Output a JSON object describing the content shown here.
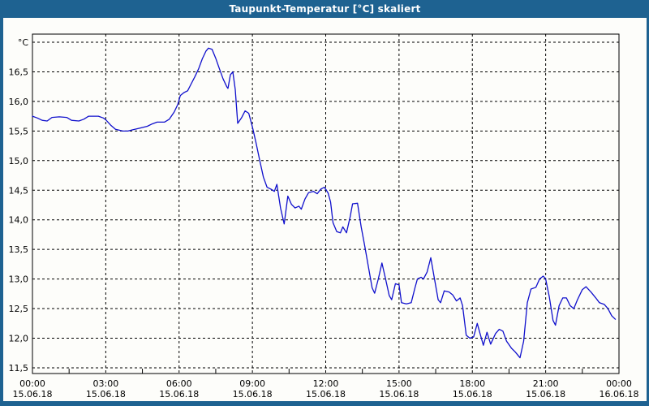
{
  "window": {
    "title": "Taupunkt-Temperatur [°C] skaliert"
  },
  "colors": {
    "titlebar_bg": "#1e6291",
    "titlebar_text": "#ffffff",
    "frame": "#1e6291",
    "background": "#fdfdfa",
    "line": "#0f0fcc",
    "grid": "#000000",
    "axis": "#000000",
    "text": "#000000"
  },
  "chart_data": {
    "type": "line",
    "title": "Taupunkt-Temperatur [°C] skaliert",
    "unit_label": "°C",
    "xlabel": "",
    "ylabel": "°C",
    "xlim_hours": [
      0,
      24
    ],
    "ylim": [
      11.45,
      17.15
    ],
    "grid": "dashed",
    "legend_position": "none",
    "y_ticks": [
      {
        "v": 17.0,
        "label": "°C"
      },
      {
        "v": 16.5,
        "label": "16,5"
      },
      {
        "v": 16.0,
        "label": "16,0"
      },
      {
        "v": 15.5,
        "label": "15,5"
      },
      {
        "v": 15.0,
        "label": "15,0"
      },
      {
        "v": 14.5,
        "label": "14,5"
      },
      {
        "v": 14.0,
        "label": "14,0"
      },
      {
        "v": 13.5,
        "label": "13,5"
      },
      {
        "v": 13.0,
        "label": "13,0"
      },
      {
        "v": 12.5,
        "label": "12,5"
      },
      {
        "v": 12.0,
        "label": "12,0"
      },
      {
        "v": 11.5,
        "label": "11,5"
      }
    ],
    "x_ticks": [
      {
        "t": 0,
        "time": "00:00",
        "date": "15.06.18"
      },
      {
        "t": 3,
        "time": "03:00",
        "date": "15.06.18"
      },
      {
        "t": 6,
        "time": "06:00",
        "date": "15.06.18"
      },
      {
        "t": 9,
        "time": "09:00",
        "date": "15.06.18"
      },
      {
        "t": 12,
        "time": "12:00",
        "date": "15.06.18"
      },
      {
        "t": 15,
        "time": "15:00",
        "date": "15.06.18"
      },
      {
        "t": 18,
        "time": "18:00",
        "date": "15.06.18"
      },
      {
        "t": 21,
        "time": "21:00",
        "date": "15.06.18"
      },
      {
        "t": 24,
        "time": "00:00",
        "date": "16.06.18"
      }
    ],
    "x_minor_tick_hours": [
      1.5,
      4.5,
      7.5,
      10.5,
      13.5,
      16.5,
      19.5,
      22.5
    ],
    "series": [
      {
        "name": "Taupunkt-Temperatur",
        "color": "#0f0fcc",
        "points": [
          [
            0.0,
            15.75
          ],
          [
            0.2,
            15.72
          ],
          [
            0.4,
            15.68
          ],
          [
            0.6,
            15.67
          ],
          [
            0.8,
            15.73
          ],
          [
            1.1,
            15.74
          ],
          [
            1.4,
            15.73
          ],
          [
            1.6,
            15.68
          ],
          [
            1.9,
            15.67
          ],
          [
            2.1,
            15.7
          ],
          [
            2.3,
            15.75
          ],
          [
            2.7,
            15.75
          ],
          [
            2.9,
            15.72
          ],
          [
            3.0,
            15.69
          ],
          [
            3.2,
            15.6
          ],
          [
            3.4,
            15.53
          ],
          [
            3.7,
            15.5
          ],
          [
            3.9,
            15.5
          ],
          [
            4.1,
            15.52
          ],
          [
            4.4,
            15.55
          ],
          [
            4.7,
            15.58
          ],
          [
            4.9,
            15.62
          ],
          [
            5.1,
            15.65
          ],
          [
            5.4,
            15.65
          ],
          [
            5.6,
            15.7
          ],
          [
            5.8,
            15.82
          ],
          [
            5.95,
            15.95
          ],
          [
            6.05,
            16.1
          ],
          [
            6.2,
            16.15
          ],
          [
            6.35,
            16.18
          ],
          [
            6.5,
            16.3
          ],
          [
            6.65,
            16.42
          ],
          [
            6.8,
            16.55
          ],
          [
            6.95,
            16.72
          ],
          [
            7.1,
            16.85
          ],
          [
            7.2,
            16.9
          ],
          [
            7.35,
            16.88
          ],
          [
            7.5,
            16.73
          ],
          [
            7.65,
            16.55
          ],
          [
            7.8,
            16.38
          ],
          [
            7.95,
            16.25
          ],
          [
            8.0,
            16.22
          ],
          [
            8.1,
            16.45
          ],
          [
            8.2,
            16.5
          ],
          [
            8.3,
            16.2
          ],
          [
            8.4,
            15.63
          ],
          [
            8.55,
            15.72
          ],
          [
            8.7,
            15.84
          ],
          [
            8.85,
            15.8
          ],
          [
            9.0,
            15.57
          ],
          [
            9.15,
            15.3
          ],
          [
            9.3,
            15.0
          ],
          [
            9.45,
            14.72
          ],
          [
            9.6,
            14.55
          ],
          [
            9.75,
            14.52
          ],
          [
            9.9,
            14.48
          ],
          [
            10.0,
            14.6
          ],
          [
            10.15,
            14.2
          ],
          [
            10.3,
            13.93
          ],
          [
            10.45,
            14.4
          ],
          [
            10.6,
            14.26
          ],
          [
            10.75,
            14.2
          ],
          [
            10.9,
            14.23
          ],
          [
            11.0,
            14.18
          ],
          [
            11.15,
            14.35
          ],
          [
            11.3,
            14.46
          ],
          [
            11.5,
            14.48
          ],
          [
            11.65,
            14.44
          ],
          [
            11.8,
            14.52
          ],
          [
            11.95,
            14.55
          ],
          [
            12.1,
            14.45
          ],
          [
            12.2,
            14.3
          ],
          [
            12.3,
            13.95
          ],
          [
            12.45,
            13.8
          ],
          [
            12.6,
            13.78
          ],
          [
            12.7,
            13.88
          ],
          [
            12.85,
            13.78
          ],
          [
            13.0,
            14.05
          ],
          [
            13.1,
            14.27
          ],
          [
            13.3,
            14.28
          ],
          [
            13.45,
            13.88
          ],
          [
            13.6,
            13.55
          ],
          [
            13.75,
            13.2
          ],
          [
            13.9,
            12.85
          ],
          [
            14.0,
            12.76
          ],
          [
            14.15,
            13.0
          ],
          [
            14.3,
            13.27
          ],
          [
            14.45,
            13.0
          ],
          [
            14.6,
            12.72
          ],
          [
            14.7,
            12.65
          ],
          [
            14.85,
            12.92
          ],
          [
            15.0,
            12.9
          ],
          [
            15.1,
            12.6
          ],
          [
            15.3,
            12.58
          ],
          [
            15.5,
            12.6
          ],
          [
            15.65,
            12.85
          ],
          [
            15.75,
            13.0
          ],
          [
            15.9,
            13.03
          ],
          [
            16.0,
            13.0
          ],
          [
            16.15,
            13.12
          ],
          [
            16.3,
            13.36
          ],
          [
            16.45,
            13.0
          ],
          [
            16.6,
            12.65
          ],
          [
            16.7,
            12.6
          ],
          [
            16.85,
            12.8
          ],
          [
            17.05,
            12.78
          ],
          [
            17.2,
            12.73
          ],
          [
            17.35,
            12.63
          ],
          [
            17.5,
            12.68
          ],
          [
            17.6,
            12.55
          ],
          [
            17.75,
            12.05
          ],
          [
            17.9,
            12.0
          ],
          [
            18.05,
            12.02
          ],
          [
            18.2,
            12.25
          ],
          [
            18.3,
            12.1
          ],
          [
            18.45,
            11.88
          ],
          [
            18.6,
            12.1
          ],
          [
            18.75,
            11.9
          ],
          [
            18.95,
            12.08
          ],
          [
            19.1,
            12.15
          ],
          [
            19.25,
            12.12
          ],
          [
            19.4,
            11.95
          ],
          [
            19.6,
            11.83
          ],
          [
            19.75,
            11.77
          ],
          [
            19.95,
            11.67
          ],
          [
            20.1,
            11.95
          ],
          [
            20.25,
            12.6
          ],
          [
            20.4,
            12.83
          ],
          [
            20.6,
            12.86
          ],
          [
            20.75,
            13.0
          ],
          [
            20.9,
            13.05
          ],
          [
            21.0,
            13.0
          ],
          [
            21.15,
            12.7
          ],
          [
            21.3,
            12.3
          ],
          [
            21.4,
            12.22
          ],
          [
            21.55,
            12.55
          ],
          [
            21.7,
            12.68
          ],
          [
            21.85,
            12.68
          ],
          [
            22.0,
            12.55
          ],
          [
            22.15,
            12.5
          ],
          [
            22.3,
            12.65
          ],
          [
            22.5,
            12.82
          ],
          [
            22.65,
            12.87
          ],
          [
            22.85,
            12.78
          ],
          [
            23.05,
            12.68
          ],
          [
            23.2,
            12.6
          ],
          [
            23.4,
            12.57
          ],
          [
            23.55,
            12.5
          ],
          [
            23.7,
            12.38
          ],
          [
            23.85,
            12.32
          ]
        ]
      }
    ]
  }
}
